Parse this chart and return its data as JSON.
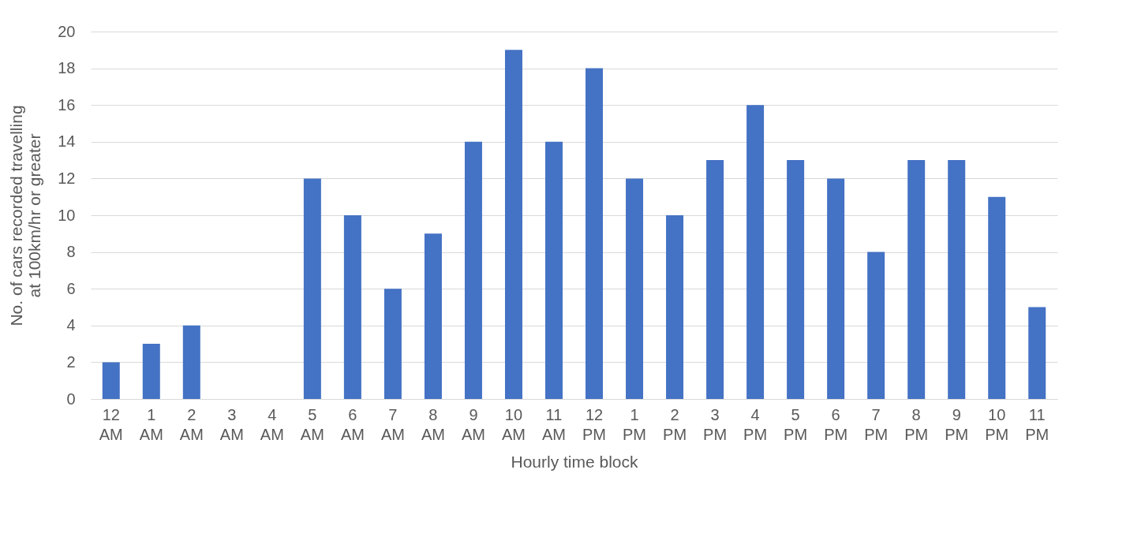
{
  "chart_data": {
    "type": "bar",
    "xlabel": "Hourly time block",
    "ylabel": "No. of cars recorded travelling at 100km/hr or greater",
    "categories": [
      "12 AM",
      "1 AM",
      "2 AM",
      "3 AM",
      "4 AM",
      "5 AM",
      "6 AM",
      "7 AM",
      "8 AM",
      "9 AM",
      "10 AM",
      "11 AM",
      "12 PM",
      "1 PM",
      "2 PM",
      "3 PM",
      "4 PM",
      "5 PM",
      "6 PM",
      "7 PM",
      "8 PM",
      "9 PM",
      "10 PM",
      "11 PM"
    ],
    "values": [
      2,
      3,
      4,
      0,
      0,
      12,
      10,
      6,
      9,
      14,
      19,
      14,
      18,
      12,
      10,
      13,
      16,
      13,
      12,
      8,
      13,
      13,
      11,
      5
    ],
    "color": "#4472c4",
    "ylim": [
      0,
      20
    ],
    "yticks": [
      0,
      2,
      4,
      6,
      8,
      10,
      12,
      14,
      16,
      18,
      20
    ],
    "grid": "y"
  }
}
